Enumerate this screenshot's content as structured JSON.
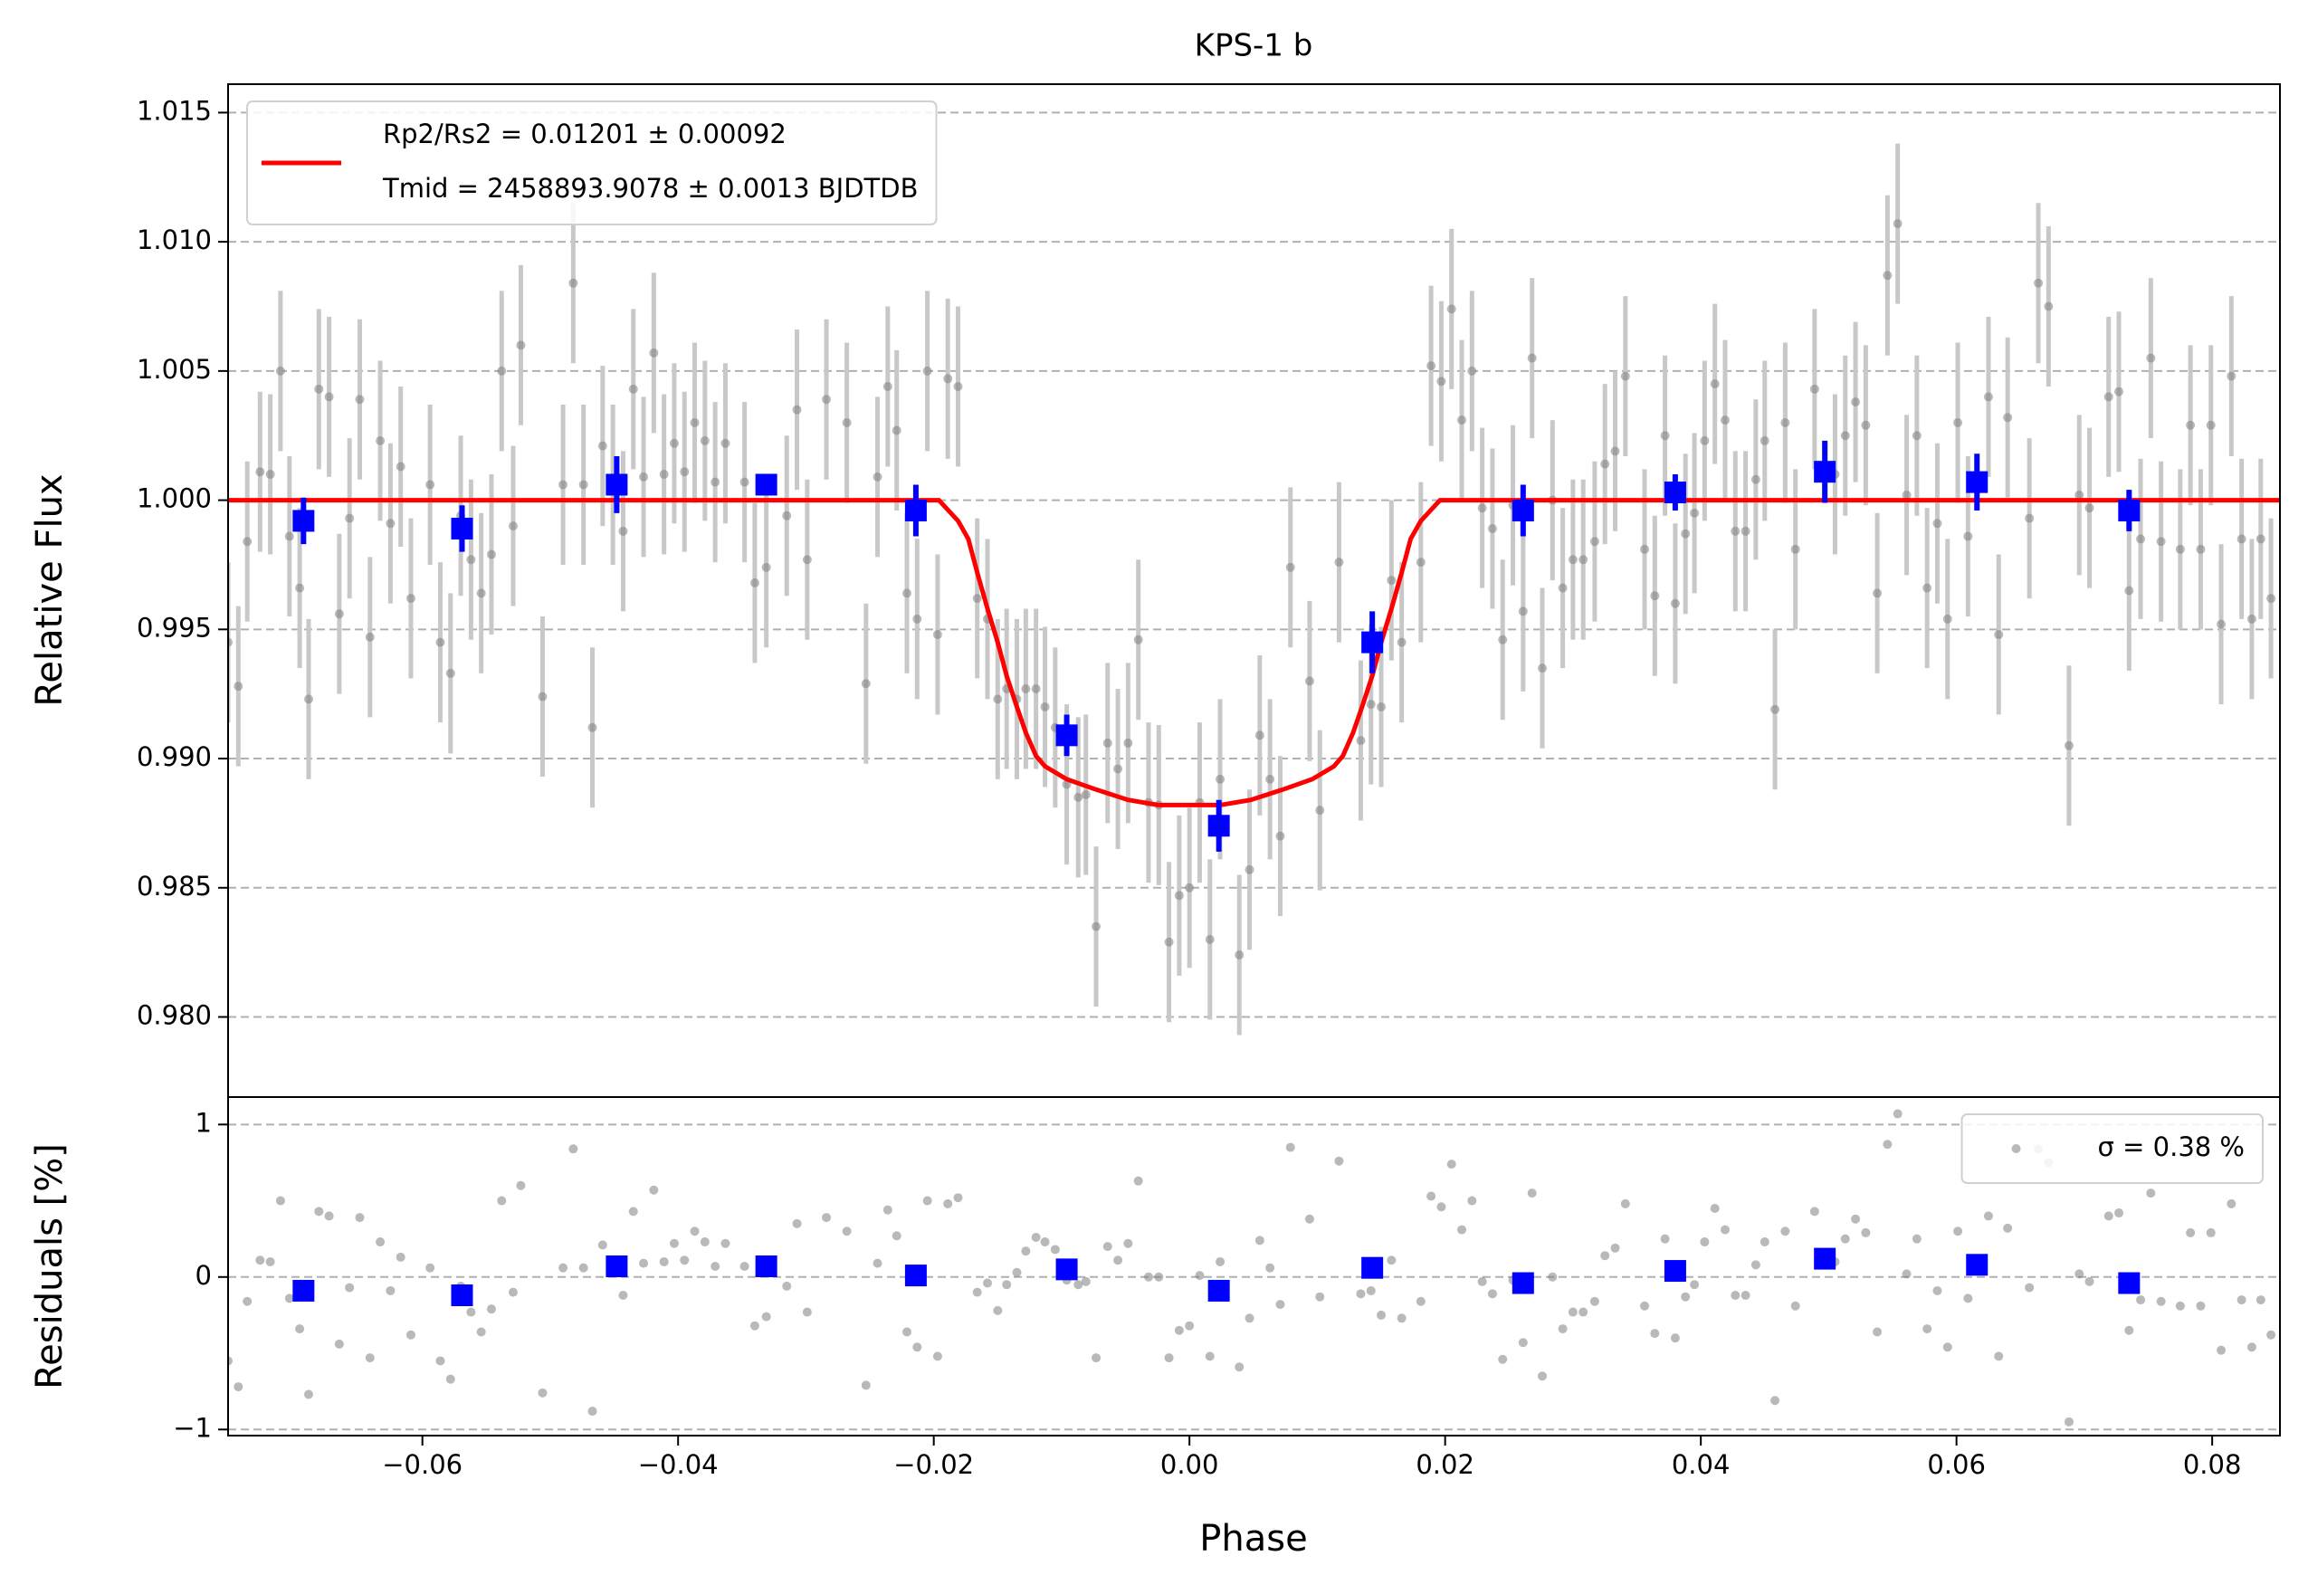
{
  "chart_data": [
    {
      "type": "scatter",
      "title": "KPS-1 b",
      "ylabel": "Relative Flux",
      "xlim": [
        -0.0752,
        0.0853
      ],
      "ylim": [
        0.9769,
        1.0161
      ],
      "yticks": [
        {
          "value": 0.98,
          "label": "0.980"
        },
        0.985,
        {
          "value": 0.99,
          "label": "0.990"
        },
        0.995,
        {
          "value": 1,
          "label": "1.000"
        },
        1.005,
        {
          "value": 1.01,
          "label": "1.010"
        },
        1.015
      ],
      "grid": true,
      "legend": "upper left",
      "series": [
        {
          "color": "#808080",
          "marker": "circle",
          "yerr": 0.0031,
          "x": [
            -0.0752,
            -0.0744,
            -0.0737,
            -0.0727,
            -0.0719,
            -0.0711,
            -0.0704,
            -0.0696,
            -0.0689,
            -0.0681,
            -0.0673,
            -0.0665,
            -0.0657,
            -0.0649,
            -0.0641,
            -0.0633,
            -0.0625,
            -0.0617,
            -0.0609,
            -0.0594,
            -0.0586,
            -0.0578,
            -0.057,
            -0.0562,
            -0.0554,
            -0.0546,
            -0.0538,
            -0.0529,
            -0.0523,
            -0.0506,
            -0.049,
            -0.0482,
            -0.0474,
            -0.0467,
            -0.0459,
            -0.0451,
            -0.0443,
            -0.0435,
            -0.0427,
            -0.0419,
            -0.0411,
            -0.0403,
            -0.0395,
            -0.0387,
            -0.0379,
            -0.0371,
            -0.0363,
            -0.0348,
            -0.034,
            -0.0331,
            -0.0315,
            -0.0307,
            -0.0299,
            -0.0284,
            -0.0268,
            -0.0253,
            -0.0244,
            -0.0236,
            -0.0229,
            -0.0221,
            -0.0213,
            -0.0205,
            -0.0197,
            -0.0189,
            -0.0181,
            -0.0166,
            -0.0158,
            -0.015,
            -0.0143,
            -0.0135,
            -0.0128,
            -0.012,
            -0.0113,
            -0.0105,
            -0.0096,
            -0.0087,
            -0.0081,
            -0.0073,
            -0.0064,
            -0.0056,
            -0.0048,
            -0.004,
            -0.0032,
            -0.0024,
            -0.0016,
            -0.0008,
            0,
            0.0008,
            0.0016,
            0.0024,
            0.0039,
            0.0047,
            0.0055,
            0.0063,
            0.0071,
            0.0079,
            0.0094,
            0.0102,
            0.0117,
            0.0134,
            0.0142,
            0.015,
            0.0158,
            0.0166,
            0.0181,
            0.0189,
            0.0197,
            0.0205,
            0.0213,
            0.0221,
            0.0229,
            0.0237,
            0.0245,
            0.0253,
            0.0261,
            0.0268,
            0.0276,
            0.0284,
            0.0292,
            0.03,
            0.0308,
            0.0317,
            0.0325,
            0.0333,
            0.0341,
            0.0356,
            0.0364,
            0.0372,
            0.038,
            0.0388,
            0.0395,
            0.0403,
            0.0411,
            0.0419,
            0.0427,
            0.0435,
            0.0443,
            0.045,
            0.0458,
            0.0466,
            0.0474,
            0.0489,
            0.0505,
            0.0513,
            0.0521,
            0.0529,
            0.0538,
            0.0546,
            0.0554,
            0.0561,
            0.0569,
            0.0577,
            0.0585,
            0.0593,
            0.0601,
            0.0609,
            0.0625,
            0.0633,
            0.064,
            0.0657,
            0.0664,
            0.0672,
            0.0688,
            0.0696,
            0.0704,
            0.0719,
            0.0727,
            0.0735,
            0.0744,
            0.0752,
            0.076,
            0.0775,
            0.0783,
            0.0791,
            0.0799,
            0.0807,
            0.0815,
            0.0823,
            0.0831,
            0.0838,
            0.0846
          ],
          "values": [
            0.9945,
            0.9928,
            0.9984,
            1.0011,
            1.001,
            1.005,
            0.9986,
            0.9966,
            0.9923,
            1.0043,
            1.004,
            0.9956,
            0.9993,
            1.0039,
            0.9947,
            1.0023,
            0.9991,
            1.0013,
            0.9962,
            1.0006,
            0.9945,
            0.9933,
            0.9994,
            0.9977,
            0.9964,
            0.9979,
            1.005,
            0.999,
            1.006,
            0.9924,
            1.0006,
            1.0084,
            1.0006,
            0.9912,
            1.0021,
            1.0006,
            0.9988,
            1.0043,
            1.0009,
            1.0057,
            1.001,
            1.0022,
            1.0011,
            1.003,
            1.0023,
            1.0007,
            1.0022,
            1.0007,
            0.9968,
            0.9974,
            0.9994,
            1.0035,
            0.9977,
            1.0039,
            1.003,
            0.9929,
            1.0009,
            1.0044,
            1.0027,
            0.9964,
            0.9954,
            1.005,
            0.9948,
            1.0047,
            1.0044,
            0.9962,
            0.9954,
            0.9923,
            0.9927,
            0.9923,
            0.9927,
            0.9927,
            0.992,
            0.9912,
            0.989,
            0.9885,
            0.9886,
            0.9835,
            0.9906,
            0.9896,
            0.9906,
            0.9946,
            0.9883,
            0.9882,
            0.9829,
            0.9847,
            0.985,
            0.9883,
            0.983,
            0.9892,
            0.9824,
            0.9857,
            0.9909,
            0.9892,
            0.987,
            0.9974,
            0.993,
            0.988,
            0.9976,
            0.9907,
            0.9921,
            0.992,
            0.9969,
            0.9945,
            0.9976,
            1.0052,
            1.0046,
            1.0074,
            1.0031,
            1.005,
            0.9997,
            0.9989,
            0.9946,
            0.9998,
            0.9957,
            1.0055,
            0.9935,
            1.0,
            0.9966,
            0.9977,
            0.9977,
            0.9984,
            1.0014,
            1.0019,
            1.0048,
            0.9981,
            0.9963,
            1.0025,
            0.996,
            0.9987,
            0.9995,
            1.0023,
            1.0045,
            1.0031,
            0.9988,
            0.9988,
            1.0008,
            1.0023,
            0.9919,
            1.003,
            0.9981,
            1.0043,
            1.001,
            1.0025,
            1.0038,
            1.0029,
            0.9964,
            1.0087,
            1.0107,
            1.0002,
            1.0025,
            0.9966,
            0.9991,
            0.9954,
            1.003,
            0.9986,
            1.004,
            0.9948,
            1.0032,
            0.9993,
            1.0084,
            1.0075,
            0.9905,
            1.0002,
            0.9997,
            1.004,
            1.0042,
            0.9965,
            0.9985,
            1.0055,
            0.9984,
            0.9981,
            1.0029,
            0.9981,
            1.0029,
            0.9952,
            1.0048,
            0.9985,
            0.9954,
            0.9985,
            0.9962
          ]
        },
        {
          "name": [
            "Rp2/Rs2 = 0.01201 ± 0.00092",
            "Tmid = 2458893.9078 ± 0.0013 BJDTDB"
          ],
          "type": "line",
          "color": "#ff0000",
          "x": [
            -0.0752,
            -0.0196,
            -0.0181,
            -0.0173,
            -0.0166,
            -0.0158,
            -0.015,
            -0.0143,
            -0.0135,
            -0.0128,
            -0.012,
            -0.0113,
            -0.0096,
            -0.0073,
            -0.0048,
            -0.0024,
            0,
            0.0024,
            0.0048,
            0.0073,
            0.0096,
            0.0113,
            0.012,
            0.0128,
            0.0135,
            0.0143,
            0.015,
            0.0158,
            0.0166,
            0.0173,
            0.0181,
            0.0196,
            0.0853
          ],
          "values": [
            1,
            1,
            0.9992,
            0.9985,
            0.9972,
            0.9958,
            0.9945,
            0.9932,
            0.992,
            0.991,
            0.9901,
            0.9897,
            0.9892,
            0.9888,
            0.9884,
            0.9882,
            0.9882,
            0.9882,
            0.9884,
            0.9888,
            0.9892,
            0.9897,
            0.9901,
            0.991,
            0.992,
            0.9932,
            0.9945,
            0.9958,
            0.9972,
            0.9985,
            0.9992,
            1,
            1
          ]
        },
        {
          "color": "#0000ff",
          "marker": "square",
          "x": [
            -0.0693,
            -0.0569,
            -0.0448,
            -0.0331,
            -0.0214,
            -0.0096,
            0.0023,
            0.0143,
            0.0261,
            0.038,
            0.0497,
            0.0616,
            0.0735
          ],
          "values": [
            0.9992,
            0.9989,
            1.0006,
            1.0006,
            0.9996,
            0.9909,
            0.9874,
            0.9945,
            0.9996,
            1.0003,
            1.0011,
            1.0007,
            0.9996
          ],
          "errors": [
            0.0009,
            0.0009,
            0.0011,
            0.0004,
            0.001,
            0.0008,
            0.001,
            0.0012,
            0.001,
            0.0007,
            0.0012,
            0.0011,
            0.0008
          ]
        }
      ]
    },
    {
      "type": "scatter",
      "xlabel": "Phase",
      "ylabel": "Residuals [%]",
      "xlim": [
        -0.0752,
        0.0853
      ],
      "ylim": [
        -1.04,
        1.18
      ],
      "xticks": [
        {
          "value": -0.06,
          "label": "−0.06"
        },
        {
          "value": -0.04,
          "label": "−0.04"
        },
        {
          "value": -0.02,
          "label": "−0.02"
        },
        {
          "value": 0,
          "label": "0.00"
        },
        {
          "value": 0.02,
          "label": "0.02"
        },
        {
          "value": 0.04,
          "label": "0.04"
        },
        {
          "value": 0.06,
          "label": "0.06"
        },
        {
          "value": 0.08,
          "label": "0.08"
        }
      ],
      "yticks": [
        {
          "value": -1,
          "label": "−1"
        },
        0,
        1
      ],
      "grid": true,
      "legend": "upper right",
      "series": [
        {
          "name": "σ = 0.38 %",
          "color": "#808080",
          "marker": "circle",
          "x": [
            -0.0752,
            -0.0744,
            -0.0737,
            -0.0727,
            -0.0719,
            -0.0711,
            -0.0704,
            -0.0696,
            -0.0689,
            -0.0681,
            -0.0673,
            -0.0665,
            -0.0657,
            -0.0649,
            -0.0641,
            -0.0633,
            -0.0625,
            -0.0617,
            -0.0609,
            -0.0594,
            -0.0586,
            -0.0578,
            -0.057,
            -0.0562,
            -0.0554,
            -0.0546,
            -0.0538,
            -0.0529,
            -0.0523,
            -0.0506,
            -0.049,
            -0.0482,
            -0.0474,
            -0.0467,
            -0.0459,
            -0.0451,
            -0.0443,
            -0.0435,
            -0.0427,
            -0.0419,
            -0.0411,
            -0.0403,
            -0.0395,
            -0.0387,
            -0.0379,
            -0.0371,
            -0.0363,
            -0.0348,
            -0.034,
            -0.0331,
            -0.0315,
            -0.0307,
            -0.0299,
            -0.0284,
            -0.0268,
            -0.0253,
            -0.0244,
            -0.0236,
            -0.0229,
            -0.0221,
            -0.0213,
            -0.0205,
            -0.0197,
            -0.0189,
            -0.0181,
            -0.0166,
            -0.0158,
            -0.015,
            -0.0143,
            -0.0135,
            -0.0128,
            -0.012,
            -0.0113,
            -0.0105,
            -0.0096,
            -0.0087,
            -0.0081,
            -0.0073,
            -0.0064,
            -0.0056,
            -0.0048,
            -0.004,
            -0.0032,
            -0.0024,
            -0.0016,
            -0.0008,
            0,
            0.0008,
            0.0016,
            0.0024,
            0.0039,
            0.0047,
            0.0055,
            0.0063,
            0.0071,
            0.0079,
            0.0094,
            0.0102,
            0.0117,
            0.0134,
            0.0142,
            0.015,
            0.0158,
            0.0166,
            0.0181,
            0.0189,
            0.0197,
            0.0205,
            0.0213,
            0.0221,
            0.0229,
            0.0237,
            0.0245,
            0.0253,
            0.0261,
            0.0268,
            0.0276,
            0.0284,
            0.0292,
            0.03,
            0.0308,
            0.0317,
            0.0325,
            0.0333,
            0.0341,
            0.0356,
            0.0364,
            0.0372,
            0.038,
            0.0388,
            0.0395,
            0.0403,
            0.0411,
            0.0419,
            0.0427,
            0.0435,
            0.0443,
            0.045,
            0.0458,
            0.0466,
            0.0474,
            0.0489,
            0.0505,
            0.0513,
            0.0521,
            0.0529,
            0.0538,
            0.0546,
            0.0554,
            0.0561,
            0.0569,
            0.0577,
            0.0585,
            0.0593,
            0.0601,
            0.0609,
            0.0625,
            0.0633,
            0.064,
            0.0657,
            0.0664,
            0.0672,
            0.0688,
            0.0696,
            0.0704,
            0.0719,
            0.0727,
            0.0735,
            0.0744,
            0.0752,
            0.076,
            0.0775,
            0.0783,
            0.0791,
            0.0799,
            0.0807,
            0.0815,
            0.0823,
            0.0831,
            0.0838,
            0.0846
          ],
          "values": [
            -0.55,
            -0.72,
            -0.16,
            0.11,
            0.1,
            0.5,
            -0.14,
            -0.34,
            -0.77,
            0.43,
            0.4,
            -0.44,
            -0.07,
            0.39,
            -0.53,
            0.23,
            -0.09,
            0.13,
            -0.38,
            0.06,
            -0.55,
            -0.67,
            -0.06,
            -0.23,
            -0.36,
            -0.21,
            0.5,
            -0.1,
            0.6,
            -0.76,
            0.06,
            0.84,
            0.06,
            -0.88,
            0.21,
            0.06,
            -0.12,
            0.43,
            0.09,
            0.57,
            0.1,
            0.22,
            0.11,
            0.3,
            0.23,
            0.07,
            0.22,
            0.07,
            -0.32,
            -0.26,
            -0.06,
            0.35,
            -0.23,
            0.39,
            0.3,
            -0.71,
            0.09,
            0.44,
            0.27,
            -0.36,
            -0.46,
            0.5,
            -0.52,
            0.48,
            0.52,
            -0.1,
            -0.04,
            -0.22,
            -0.05,
            0.03,
            0.17,
            0.26,
            0.23,
            0.18,
            -0.02,
            -0.05,
            -0.03,
            -0.53,
            0.2,
            0.11,
            0.22,
            0.63,
            0,
            0,
            -0.53,
            -0.35,
            -0.32,
            0.01,
            -0.52,
            0.1,
            -0.59,
            -0.27,
            0.24,
            0.06,
            -0.18,
            0.85,
            0.38,
            -0.13,
            0.76,
            -0.11,
            -0.09,
            -0.25,
            0.11,
            -0.27,
            -0.16,
            0.53,
            0.46,
            0.74,
            0.31,
            0.5,
            -0.03,
            -0.11,
            -0.54,
            -0.02,
            -0.43,
            0.55,
            -0.65,
            0,
            -0.34,
            -0.23,
            -0.23,
            -0.16,
            0.14,
            0.19,
            0.48,
            -0.19,
            -0.37,
            0.25,
            -0.4,
            -0.13,
            -0.05,
            0.23,
            0.45,
            0.31,
            -0.12,
            -0.12,
            0.08,
            0.23,
            -0.81,
            0.3,
            -0.19,
            0.43,
            0.1,
            0.25,
            0.38,
            0.29,
            -0.36,
            0.87,
            1.07,
            0.02,
            0.25,
            -0.34,
            -0.09,
            -0.46,
            0.3,
            -0.14,
            0.4,
            -0.52,
            0.32,
            -0.07,
            0.84,
            0.75,
            -0.95,
            0.02,
            -0.03,
            0.4,
            0.42,
            -0.35,
            -0.15,
            0.55,
            -0.16,
            -0.19,
            0.29,
            -0.19,
            0.29,
            -0.48,
            0.48,
            -0.15,
            -0.46,
            -0.15,
            -0.38
          ]
        },
        {
          "color": "#0000ff",
          "marker": "square",
          "x": [
            -0.0693,
            -0.0569,
            -0.0448,
            -0.0331,
            -0.0214,
            -0.0096,
            0.0023,
            0.0143,
            0.0261,
            0.038,
            0.0497,
            0.0616,
            0.0735
          ],
          "values": [
            -0.09,
            -0.12,
            0.07,
            0.07,
            0.01,
            0.05,
            -0.09,
            0.06,
            -0.04,
            0.04,
            0.12,
            0.08,
            -0.04
          ]
        }
      ]
    }
  ]
}
